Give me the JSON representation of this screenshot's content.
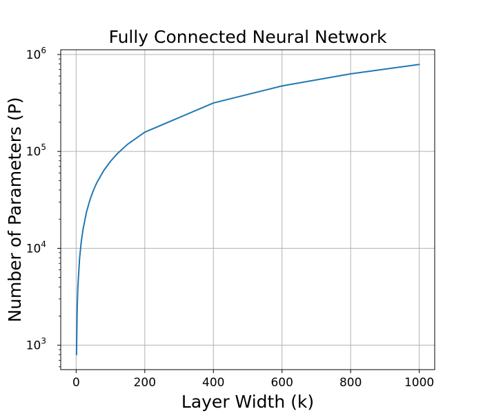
{
  "chart_data": {
    "type": "line",
    "title": "Fully Connected Neural Network",
    "xlabel": "Layer Width (k)",
    "ylabel": "Number of Parameters (P)",
    "xlim": [
      -45,
      1045
    ],
    "ylim": [
      560,
      1120000
    ],
    "yscale": "log",
    "grid": true,
    "xticks": [
      0,
      200,
      400,
      600,
      800,
      1000
    ],
    "xtick_labels": [
      "0",
      "200",
      "400",
      "600",
      "800",
      "1000"
    ],
    "yticks": [
      1000,
      10000,
      100000,
      1000000
    ],
    "ytick_labels": [
      {
        "base": "10",
        "exp": "3"
      },
      {
        "base": "10",
        "exp": "4"
      },
      {
        "base": "10",
        "exp": "5"
      },
      {
        "base": "10",
        "exp": "6"
      }
    ],
    "series": [
      {
        "color": "#1f77b4",
        "x": [
          1,
          3,
          5,
          10,
          15,
          20,
          30,
          40,
          50,
          60,
          80,
          100,
          120,
          150,
          200,
          400,
          600,
          800,
          1000
        ],
        "y": [
          800,
          2400,
          4000,
          7900,
          11800,
          15700,
          23600,
          31500,
          39500,
          47400,
          63200,
          79000,
          94800,
          118500,
          158000,
          316000,
          474000,
          632000,
          790000
        ]
      }
    ]
  }
}
